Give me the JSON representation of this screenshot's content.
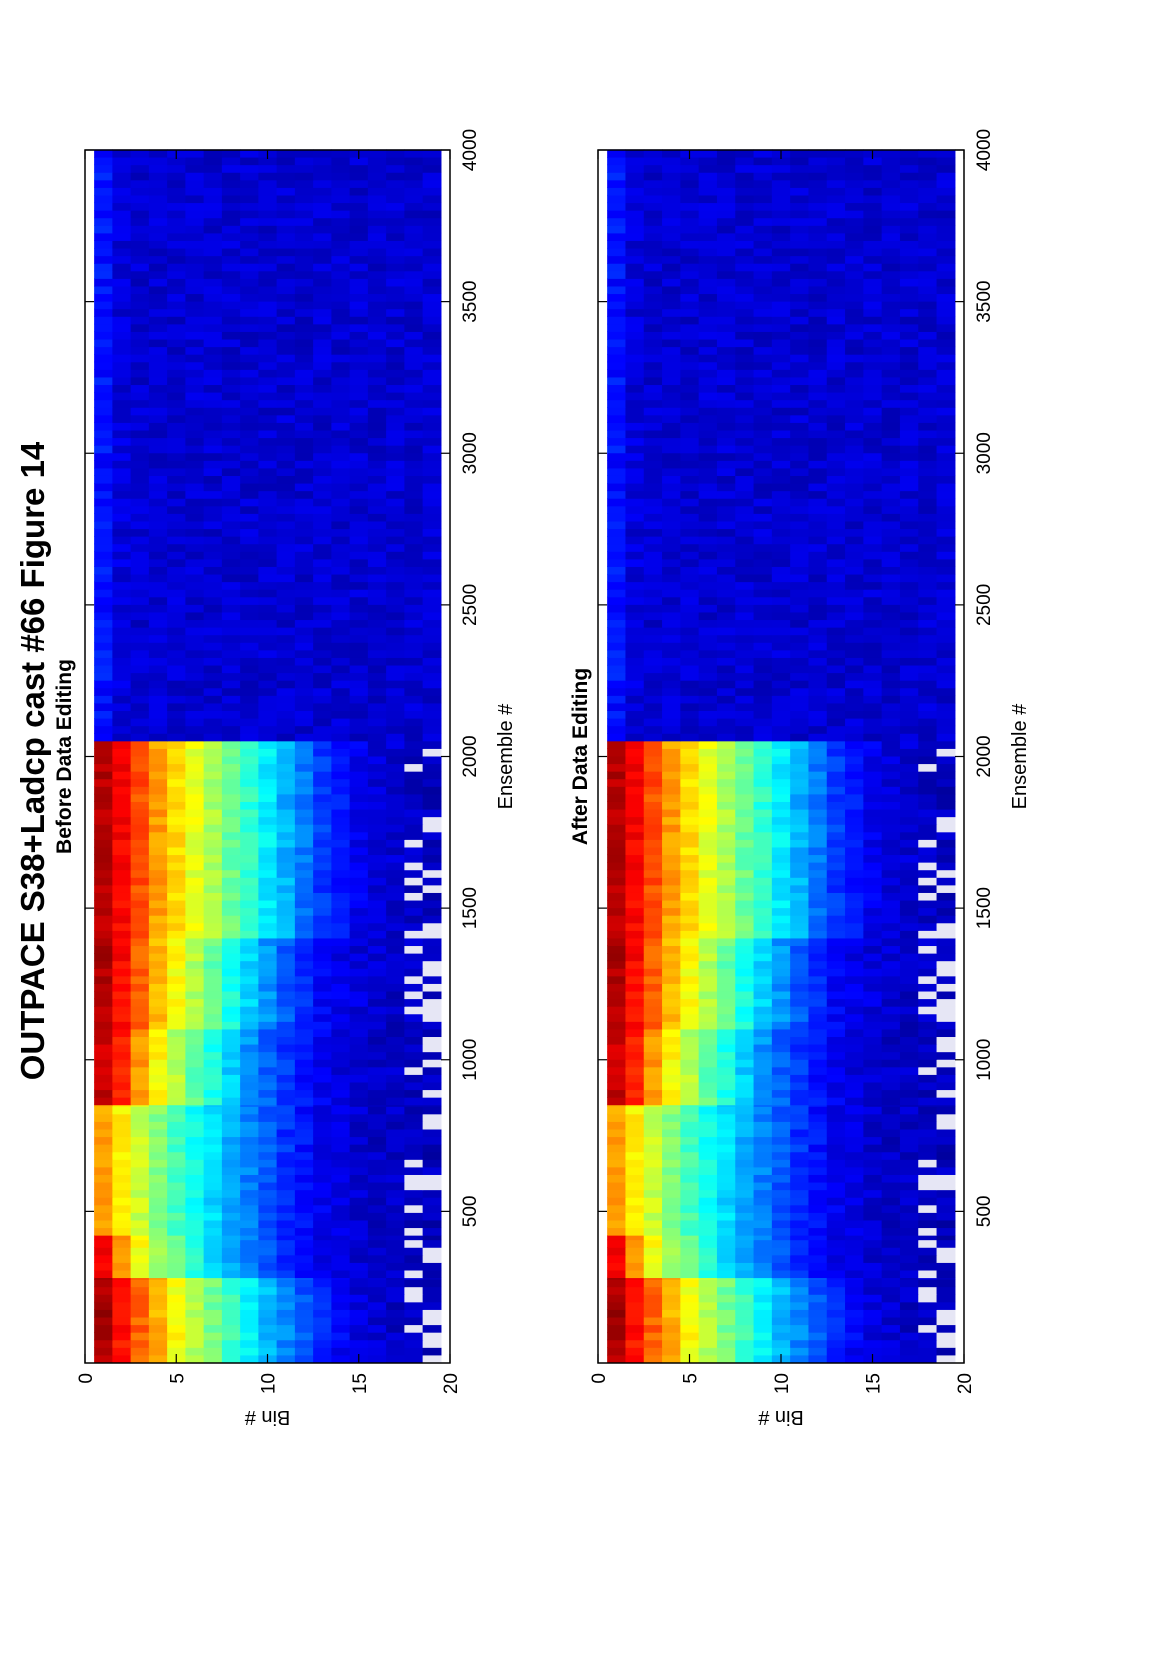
{
  "figure": {
    "title": "OUTPACE S38+Ladcp cast #66  Figure 14"
  },
  "chart_data": [
    {
      "type": "heatmap",
      "title": "Before Data Editing",
      "xlabel": "Ensemble #",
      "ylabel": "Bin #",
      "xlim": [
        0,
        4000
      ],
      "ylim": [
        0,
        20
      ],
      "y_reversed": true,
      "xticks": [
        500,
        1000,
        1500,
        2000,
        2500,
        3000,
        3500,
        4000
      ],
      "yticks": [
        0,
        5,
        10,
        15,
        20
      ],
      "colormap": "jet",
      "grid": false,
      "legend": "none",
      "profile_segments": [
        {
          "x_start": 0,
          "x_end": 280,
          "profile": [
            0.96,
            0.86,
            0.78,
            0.7,
            0.62,
            0.55,
            0.49,
            0.43,
            0.37,
            0.31,
            0.26,
            0.21,
            0.16,
            0.12,
            0.09,
            0.08,
            0.07,
            0.07,
            0.06
          ]
        },
        {
          "x_start": 280,
          "x_end": 420,
          "profile": [
            0.88,
            0.72,
            0.62,
            0.54,
            0.47,
            0.41,
            0.35,
            0.3,
            0.25,
            0.2,
            0.16,
            0.13,
            0.1,
            0.09,
            0.08,
            0.07,
            0.07,
            0.06,
            0.06
          ]
        },
        {
          "x_start": 420,
          "x_end": 850,
          "profile": [
            0.72,
            0.64,
            0.57,
            0.5,
            0.44,
            0.39,
            0.34,
            0.29,
            0.25,
            0.21,
            0.17,
            0.14,
            0.11,
            0.09,
            0.08,
            0.07,
            0.07,
            0.06,
            0.06
          ]
        },
        {
          "x_start": 850,
          "x_end": 1100,
          "profile": [
            0.93,
            0.84,
            0.72,
            0.63,
            0.55,
            0.47,
            0.4,
            0.33,
            0.27,
            0.22,
            0.18,
            0.14,
            0.11,
            0.09,
            0.08,
            0.07,
            0.07,
            0.06,
            0.06
          ]
        },
        {
          "x_start": 1100,
          "x_end": 1400,
          "profile": [
            0.95,
            0.87,
            0.78,
            0.7,
            0.62,
            0.55,
            0.47,
            0.4,
            0.33,
            0.27,
            0.21,
            0.16,
            0.12,
            0.1,
            0.09,
            0.08,
            0.07,
            0.07,
            0.06
          ]
        },
        {
          "x_start": 1400,
          "x_end": 2050,
          "profile": [
            0.95,
            0.88,
            0.8,
            0.72,
            0.66,
            0.6,
            0.54,
            0.48,
            0.42,
            0.36,
            0.3,
            0.24,
            0.18,
            0.14,
            0.11,
            0.09,
            0.08,
            0.07,
            0.06
          ]
        },
        {
          "x_start": 2050,
          "x_end": 4000,
          "profile": [
            0.14,
            0.09,
            0.08,
            0.08,
            0.08,
            0.08,
            0.08,
            0.08,
            0.08,
            0.08,
            0.08,
            0.08,
            0.08,
            0.08,
            0.08,
            0.08,
            0.08,
            0.08,
            0.08
          ]
        }
      ]
    },
    {
      "type": "heatmap",
      "title": "After Data Editing",
      "xlabel": "Ensemble #",
      "ylabel": "Bin #",
      "xlim": [
        0,
        4000
      ],
      "ylim": [
        0,
        20
      ],
      "y_reversed": true,
      "xticks": [
        500,
        1000,
        1500,
        2000,
        2500,
        3000,
        3500,
        4000
      ],
      "yticks": [
        0,
        5,
        10,
        15,
        20
      ],
      "colormap": "jet",
      "grid": false,
      "legend": "none",
      "profile_segments": [
        {
          "x_start": 0,
          "x_end": 280,
          "profile": [
            0.96,
            0.86,
            0.78,
            0.7,
            0.62,
            0.55,
            0.49,
            0.43,
            0.37,
            0.31,
            0.26,
            0.21,
            0.16,
            0.12,
            0.09,
            0.08,
            0.07,
            0.07,
            0.06
          ]
        },
        {
          "x_start": 280,
          "x_end": 420,
          "profile": [
            0.88,
            0.72,
            0.62,
            0.54,
            0.47,
            0.41,
            0.35,
            0.3,
            0.25,
            0.2,
            0.16,
            0.13,
            0.1,
            0.09,
            0.08,
            0.07,
            0.07,
            0.06,
            0.06
          ]
        },
        {
          "x_start": 420,
          "x_end": 850,
          "profile": [
            0.72,
            0.64,
            0.57,
            0.5,
            0.44,
            0.39,
            0.34,
            0.29,
            0.25,
            0.21,
            0.17,
            0.14,
            0.11,
            0.09,
            0.08,
            0.07,
            0.07,
            0.06,
            0.06
          ]
        },
        {
          "x_start": 850,
          "x_end": 1100,
          "profile": [
            0.93,
            0.84,
            0.72,
            0.63,
            0.55,
            0.47,
            0.4,
            0.33,
            0.27,
            0.22,
            0.18,
            0.14,
            0.11,
            0.09,
            0.08,
            0.07,
            0.07,
            0.06,
            0.06
          ]
        },
        {
          "x_start": 1100,
          "x_end": 1400,
          "profile": [
            0.95,
            0.87,
            0.78,
            0.7,
            0.62,
            0.55,
            0.47,
            0.4,
            0.33,
            0.27,
            0.21,
            0.16,
            0.12,
            0.1,
            0.09,
            0.08,
            0.07,
            0.07,
            0.06
          ]
        },
        {
          "x_start": 1400,
          "x_end": 2050,
          "profile": [
            0.95,
            0.88,
            0.8,
            0.72,
            0.66,
            0.6,
            0.54,
            0.48,
            0.42,
            0.36,
            0.3,
            0.24,
            0.18,
            0.14,
            0.11,
            0.09,
            0.08,
            0.07,
            0.06
          ]
        },
        {
          "x_start": 2050,
          "x_end": 4000,
          "profile": [
            0.14,
            0.09,
            0.08,
            0.08,
            0.08,
            0.08,
            0.08,
            0.08,
            0.08,
            0.08,
            0.08,
            0.08,
            0.08,
            0.08,
            0.08,
            0.08,
            0.08,
            0.08,
            0.08
          ]
        }
      ]
    }
  ]
}
